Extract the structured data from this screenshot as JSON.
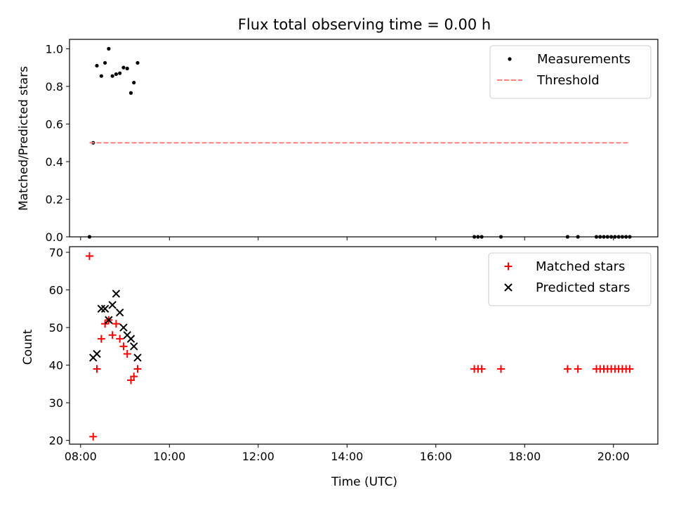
{
  "chart_data": [
    {
      "type": "scatter",
      "title": "Flux total observing time = 0.00 h",
      "ylabel": "Matched/Predicted stars",
      "xlabel": "",
      "xlim": [
        "07:45",
        "21:00"
      ],
      "ylim": [
        0,
        1.05
      ],
      "yticks": [
        "0.0",
        "0.2",
        "0.4",
        "0.6",
        "0.8",
        "1.0"
      ],
      "legend": {
        "placement": "top-right",
        "entries": [
          {
            "label": "Measurements",
            "marker": "dot",
            "color": "#000000"
          },
          {
            "label": "Threshold",
            "marker": "dashed-line",
            "color": "#ff7f7f"
          }
        ]
      },
      "series": [
        {
          "name": "Measurements",
          "color": "#000000",
          "points": [
            [
              "08:12",
              0.0
            ],
            [
              "08:17",
              0.5
            ],
            [
              "08:22",
              0.91
            ],
            [
              "08:28",
              0.855
            ],
            [
              "08:33",
              0.925
            ],
            [
              "08:38",
              1.0
            ],
            [
              "08:43",
              0.855
            ],
            [
              "08:48",
              0.865
            ],
            [
              "08:53",
              0.87
            ],
            [
              "08:58",
              0.9
            ],
            [
              "09:03",
              0.895
            ],
            [
              "09:08",
              0.765
            ],
            [
              "09:12",
              0.82
            ],
            [
              "09:17",
              0.925
            ],
            [
              "16:52",
              0.0
            ],
            [
              "16:57",
              0.0
            ],
            [
              "17:02",
              0.0
            ],
            [
              "17:28",
              0.0
            ],
            [
              "18:58",
              0.0
            ],
            [
              "19:12",
              0.0
            ],
            [
              "19:37",
              0.0
            ],
            [
              "19:42",
              0.0
            ],
            [
              "19:47",
              0.0
            ],
            [
              "19:52",
              0.0
            ],
            [
              "19:57",
              0.0
            ],
            [
              "20:02",
              0.0
            ],
            [
              "20:07",
              0.0
            ],
            [
              "20:12",
              0.0
            ],
            [
              "20:17",
              0.0
            ],
            [
              "20:22",
              0.0
            ]
          ]
        },
        {
          "name": "Threshold",
          "color": "#ff7f7f",
          "line": [
            [
              "08:12",
              0.5
            ],
            [
              "20:22",
              0.5
            ]
          ]
        }
      ]
    },
    {
      "type": "scatter",
      "title": "",
      "ylabel": "Count",
      "xlabel": "Time (UTC)",
      "xlim": [
        "07:45",
        "21:00"
      ],
      "ylim": [
        19,
        71.5
      ],
      "xticks": [
        "08:00",
        "10:00",
        "12:00",
        "14:00",
        "16:00",
        "18:00",
        "20:00"
      ],
      "yticks": [
        "20",
        "30",
        "40",
        "50",
        "60",
        "70"
      ],
      "legend": {
        "placement": "top-right",
        "entries": [
          {
            "label": "Matched stars",
            "marker": "plus",
            "color": "#ff0000"
          },
          {
            "label": "Predicted stars",
            "marker": "cross",
            "color": "#000000"
          }
        ]
      },
      "series": [
        {
          "name": "Matched stars",
          "color": "#ff0000",
          "points": [
            [
              "08:12",
              69
            ],
            [
              "08:17",
              21
            ],
            [
              "08:22",
              39
            ],
            [
              "08:28",
              47
            ],
            [
              "08:33",
              51
            ],
            [
              "08:38",
              52
            ],
            [
              "08:43",
              48
            ],
            [
              "08:48",
              51
            ],
            [
              "08:53",
              47
            ],
            [
              "08:58",
              45
            ],
            [
              "09:03",
              43
            ],
            [
              "09:08",
              36
            ],
            [
              "09:12",
              37
            ],
            [
              "09:17",
              39
            ],
            [
              "16:52",
              39
            ],
            [
              "16:57",
              39
            ],
            [
              "17:02",
              39
            ],
            [
              "17:28",
              39
            ],
            [
              "18:58",
              39
            ],
            [
              "19:12",
              39
            ],
            [
              "19:37",
              39
            ],
            [
              "19:42",
              39
            ],
            [
              "19:47",
              39
            ],
            [
              "19:52",
              39
            ],
            [
              "19:57",
              39
            ],
            [
              "20:02",
              39
            ],
            [
              "20:07",
              39
            ],
            [
              "20:12",
              39
            ],
            [
              "20:17",
              39
            ],
            [
              "20:22",
              39
            ]
          ]
        },
        {
          "name": "Predicted stars",
          "color": "#000000",
          "points": [
            [
              "08:17",
              42
            ],
            [
              "08:22",
              43
            ],
            [
              "08:28",
              55
            ],
            [
              "08:33",
              55
            ],
            [
              "08:38",
              52
            ],
            [
              "08:43",
              56
            ],
            [
              "08:48",
              59
            ],
            [
              "08:53",
              54
            ],
            [
              "08:58",
              50
            ],
            [
              "09:03",
              48
            ],
            [
              "09:08",
              47
            ],
            [
              "09:12",
              45
            ],
            [
              "09:17",
              42
            ]
          ]
        }
      ]
    }
  ]
}
